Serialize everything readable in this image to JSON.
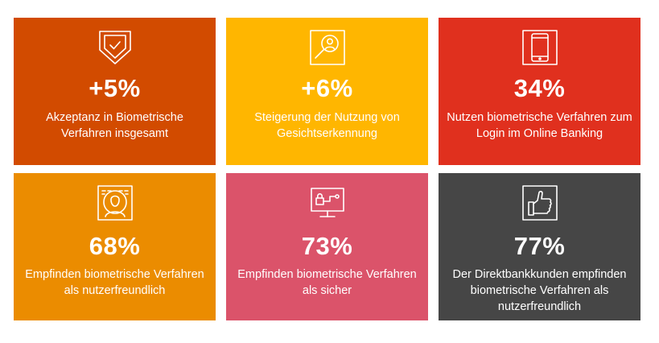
{
  "tiles": [
    {
      "value": "+5%",
      "description": "Akzeptanz in Biometrische Verfahren insgesamt",
      "icon": "shield-check-icon",
      "color": "#d24b00"
    },
    {
      "value": "+6%",
      "description": "Steigerung der Nutzung von Gesichtserkennung",
      "icon": "face-search-icon",
      "color": "#ffb600"
    },
    {
      "value": "34%",
      "description": "Nutzen biometrische Verfahren zum Login im Online Banking",
      "icon": "smartphone-icon",
      "color": "#e0301e"
    },
    {
      "value": "68%",
      "description": "Empfinden biometrische Verfahren als nutzerfreundlich",
      "icon": "face-binary-icon",
      "color": "#eb8c00"
    },
    {
      "value": "73%",
      "description": "Empfinden biometrische Verfahren als sicher",
      "icon": "monitor-lock-icon",
      "color": "#db536a"
    },
    {
      "value": "77%",
      "description": "Der Direktbankkunden empfinden biometrische Verfahren als nutzerfreundlich",
      "icon": "thumbs-up-icon",
      "color": "#464646"
    }
  ]
}
